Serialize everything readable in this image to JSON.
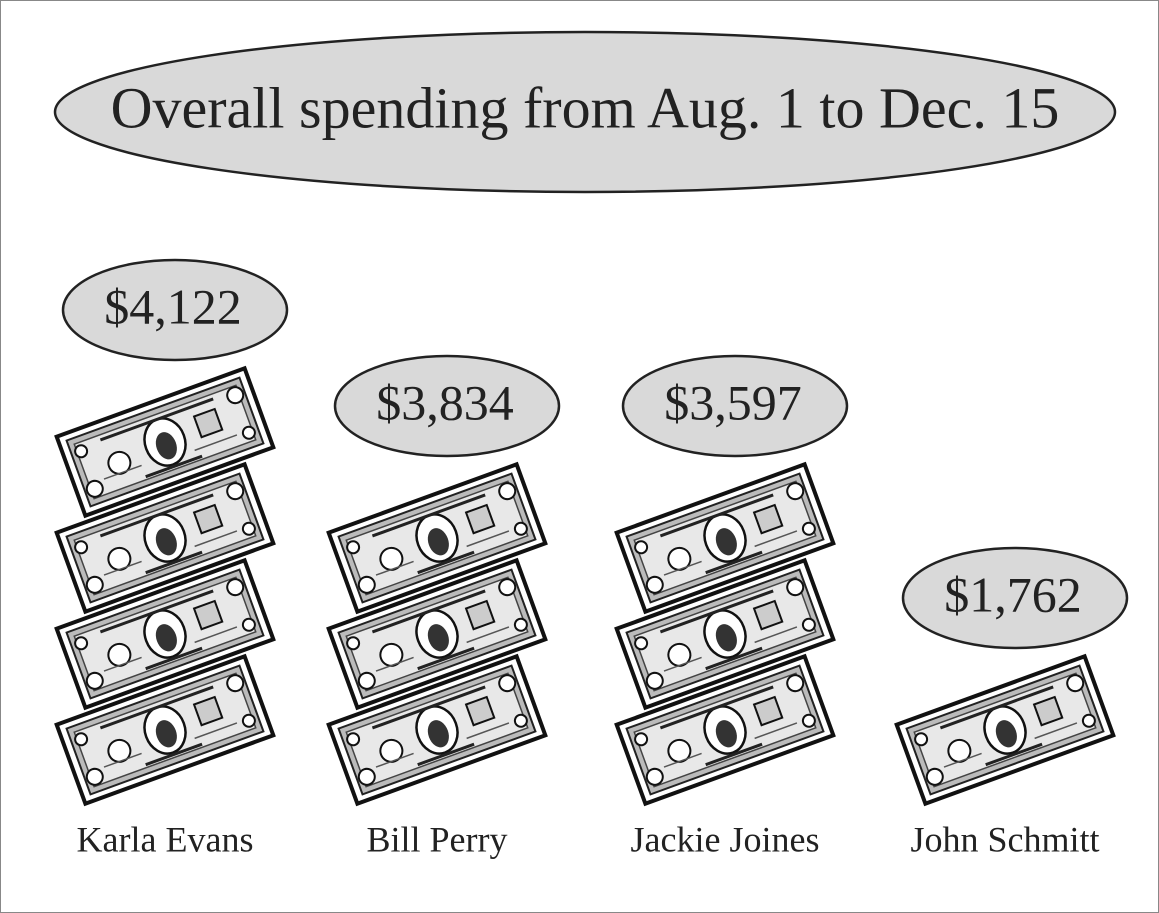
{
  "chart_data": {
    "type": "pictograph",
    "title": "Overall spending from Aug. 1 to Dec. 15",
    "categories": [
      "Karla Evans",
      "Bill Perry",
      "Jackie Joines",
      "John Schmitt"
    ],
    "values": [
      4122,
      3834,
      3597,
      1762
    ],
    "value_labels": [
      "$4,122",
      "$3,834",
      "$3,597",
      "$1,762"
    ],
    "color": "#d9d9d9"
  }
}
